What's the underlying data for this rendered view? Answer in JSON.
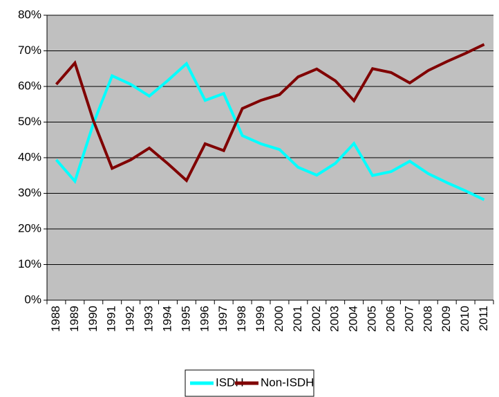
{
  "chart_data": {
    "type": "line",
    "categories": [
      "1988",
      "1989",
      "1990",
      "1991",
      "1992",
      "1993",
      "1994",
      "1995",
      "1996",
      "1997",
      "1998",
      "1999",
      "2000",
      "2001",
      "2002",
      "2003",
      "2004",
      "2005",
      "2006",
      "2007",
      "2008",
      "2009",
      "2010",
      "2011"
    ],
    "series": [
      {
        "name": "ISDH",
        "color": "#00ffff",
        "values": [
          39.4,
          33.4,
          49.7,
          63.0,
          60.6,
          57.3,
          61.7,
          66.4,
          56.1,
          58.0,
          46.2,
          43.9,
          42.3,
          37.3,
          35.1,
          38.4,
          44.0,
          35.0,
          36.1,
          39.0,
          35.5,
          33.0,
          30.7,
          28.2
        ]
      },
      {
        "name": "Non-ISDH",
        "color": "#800000",
        "values": [
          60.6,
          66.6,
          50.3,
          37.0,
          39.4,
          42.7,
          38.3,
          33.6,
          43.9,
          42.0,
          53.8,
          56.1,
          57.7,
          62.7,
          64.9,
          61.6,
          56.0,
          65.0,
          63.9,
          61.0,
          64.5,
          67.0,
          69.3,
          71.8
        ]
      }
    ],
    "ylim": [
      0,
      80
    ],
    "yticks": [
      {
        "value": 0,
        "label": "0%"
      },
      {
        "value": 10,
        "label": "10%"
      },
      {
        "value": 20,
        "label": "20%"
      },
      {
        "value": 30,
        "label": "30%"
      },
      {
        "value": 40,
        "label": "40%"
      },
      {
        "value": 50,
        "label": "50%"
      },
      {
        "value": 60,
        "label": "60%"
      },
      {
        "value": 70,
        "label": "70%"
      },
      {
        "value": 80,
        "label": "80%"
      }
    ],
    "grid": true,
    "background": "#c0c0c0",
    "legend": "bottom"
  }
}
